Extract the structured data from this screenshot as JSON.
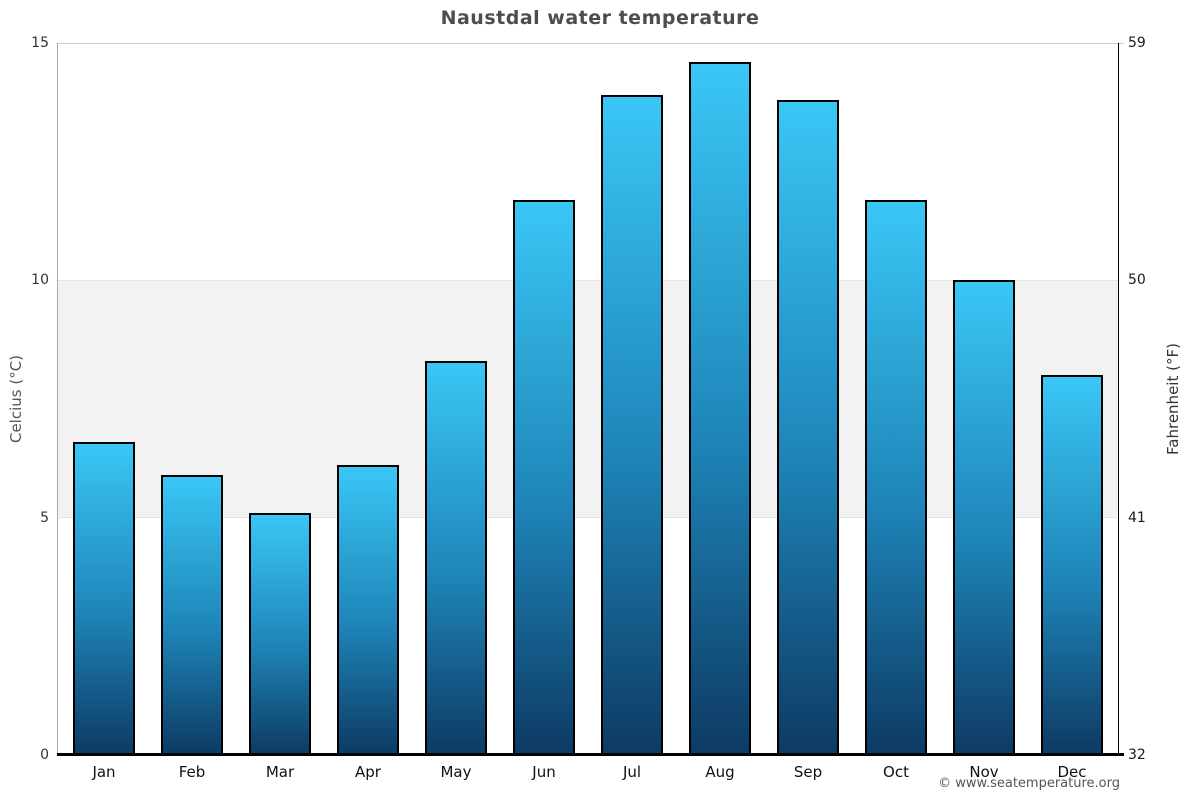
{
  "chart_data": {
    "type": "bar",
    "title": "Naustdal water temperature",
    "categories": [
      "Jan",
      "Feb",
      "Mar",
      "Apr",
      "May",
      "Jun",
      "Jul",
      "Aug",
      "Sep",
      "Oct",
      "Nov",
      "Dec"
    ],
    "values": [
      6.6,
      5.9,
      5.1,
      6.1,
      8.3,
      11.7,
      13.9,
      14.6,
      13.8,
      11.7,
      10.0,
      8.0
    ],
    "ylabel_left": "Celcius (°C)",
    "ylabel_right": "Fahrenheit (°F)",
    "ylim": [
      0,
      15
    ],
    "yticks_celsius": [
      0,
      5,
      10,
      15
    ],
    "ytick_labels_celsius": [
      "0",
      "5",
      "10",
      "15"
    ],
    "ytick_labels_fahrenheit": [
      "32",
      "41",
      "50",
      "59"
    ],
    "shaded_band_celsius": [
      5,
      10
    ],
    "grid": "top gridline at 15°C, shaded horizontal band between 5°C and 10°C",
    "legend": "none"
  },
  "footer": {
    "copyright": "© www.seatemperature.org"
  },
  "colors": {
    "bar_gradient_top": "#3ac7f5",
    "bar_gradient_mid": "#1e84b8",
    "bar_gradient_bottom": "#0d3a63",
    "bar_border": "#000000",
    "shaded_band": "#f2f2f2",
    "title_text": "#4d4d4d",
    "copyright_text": "#555555"
  }
}
